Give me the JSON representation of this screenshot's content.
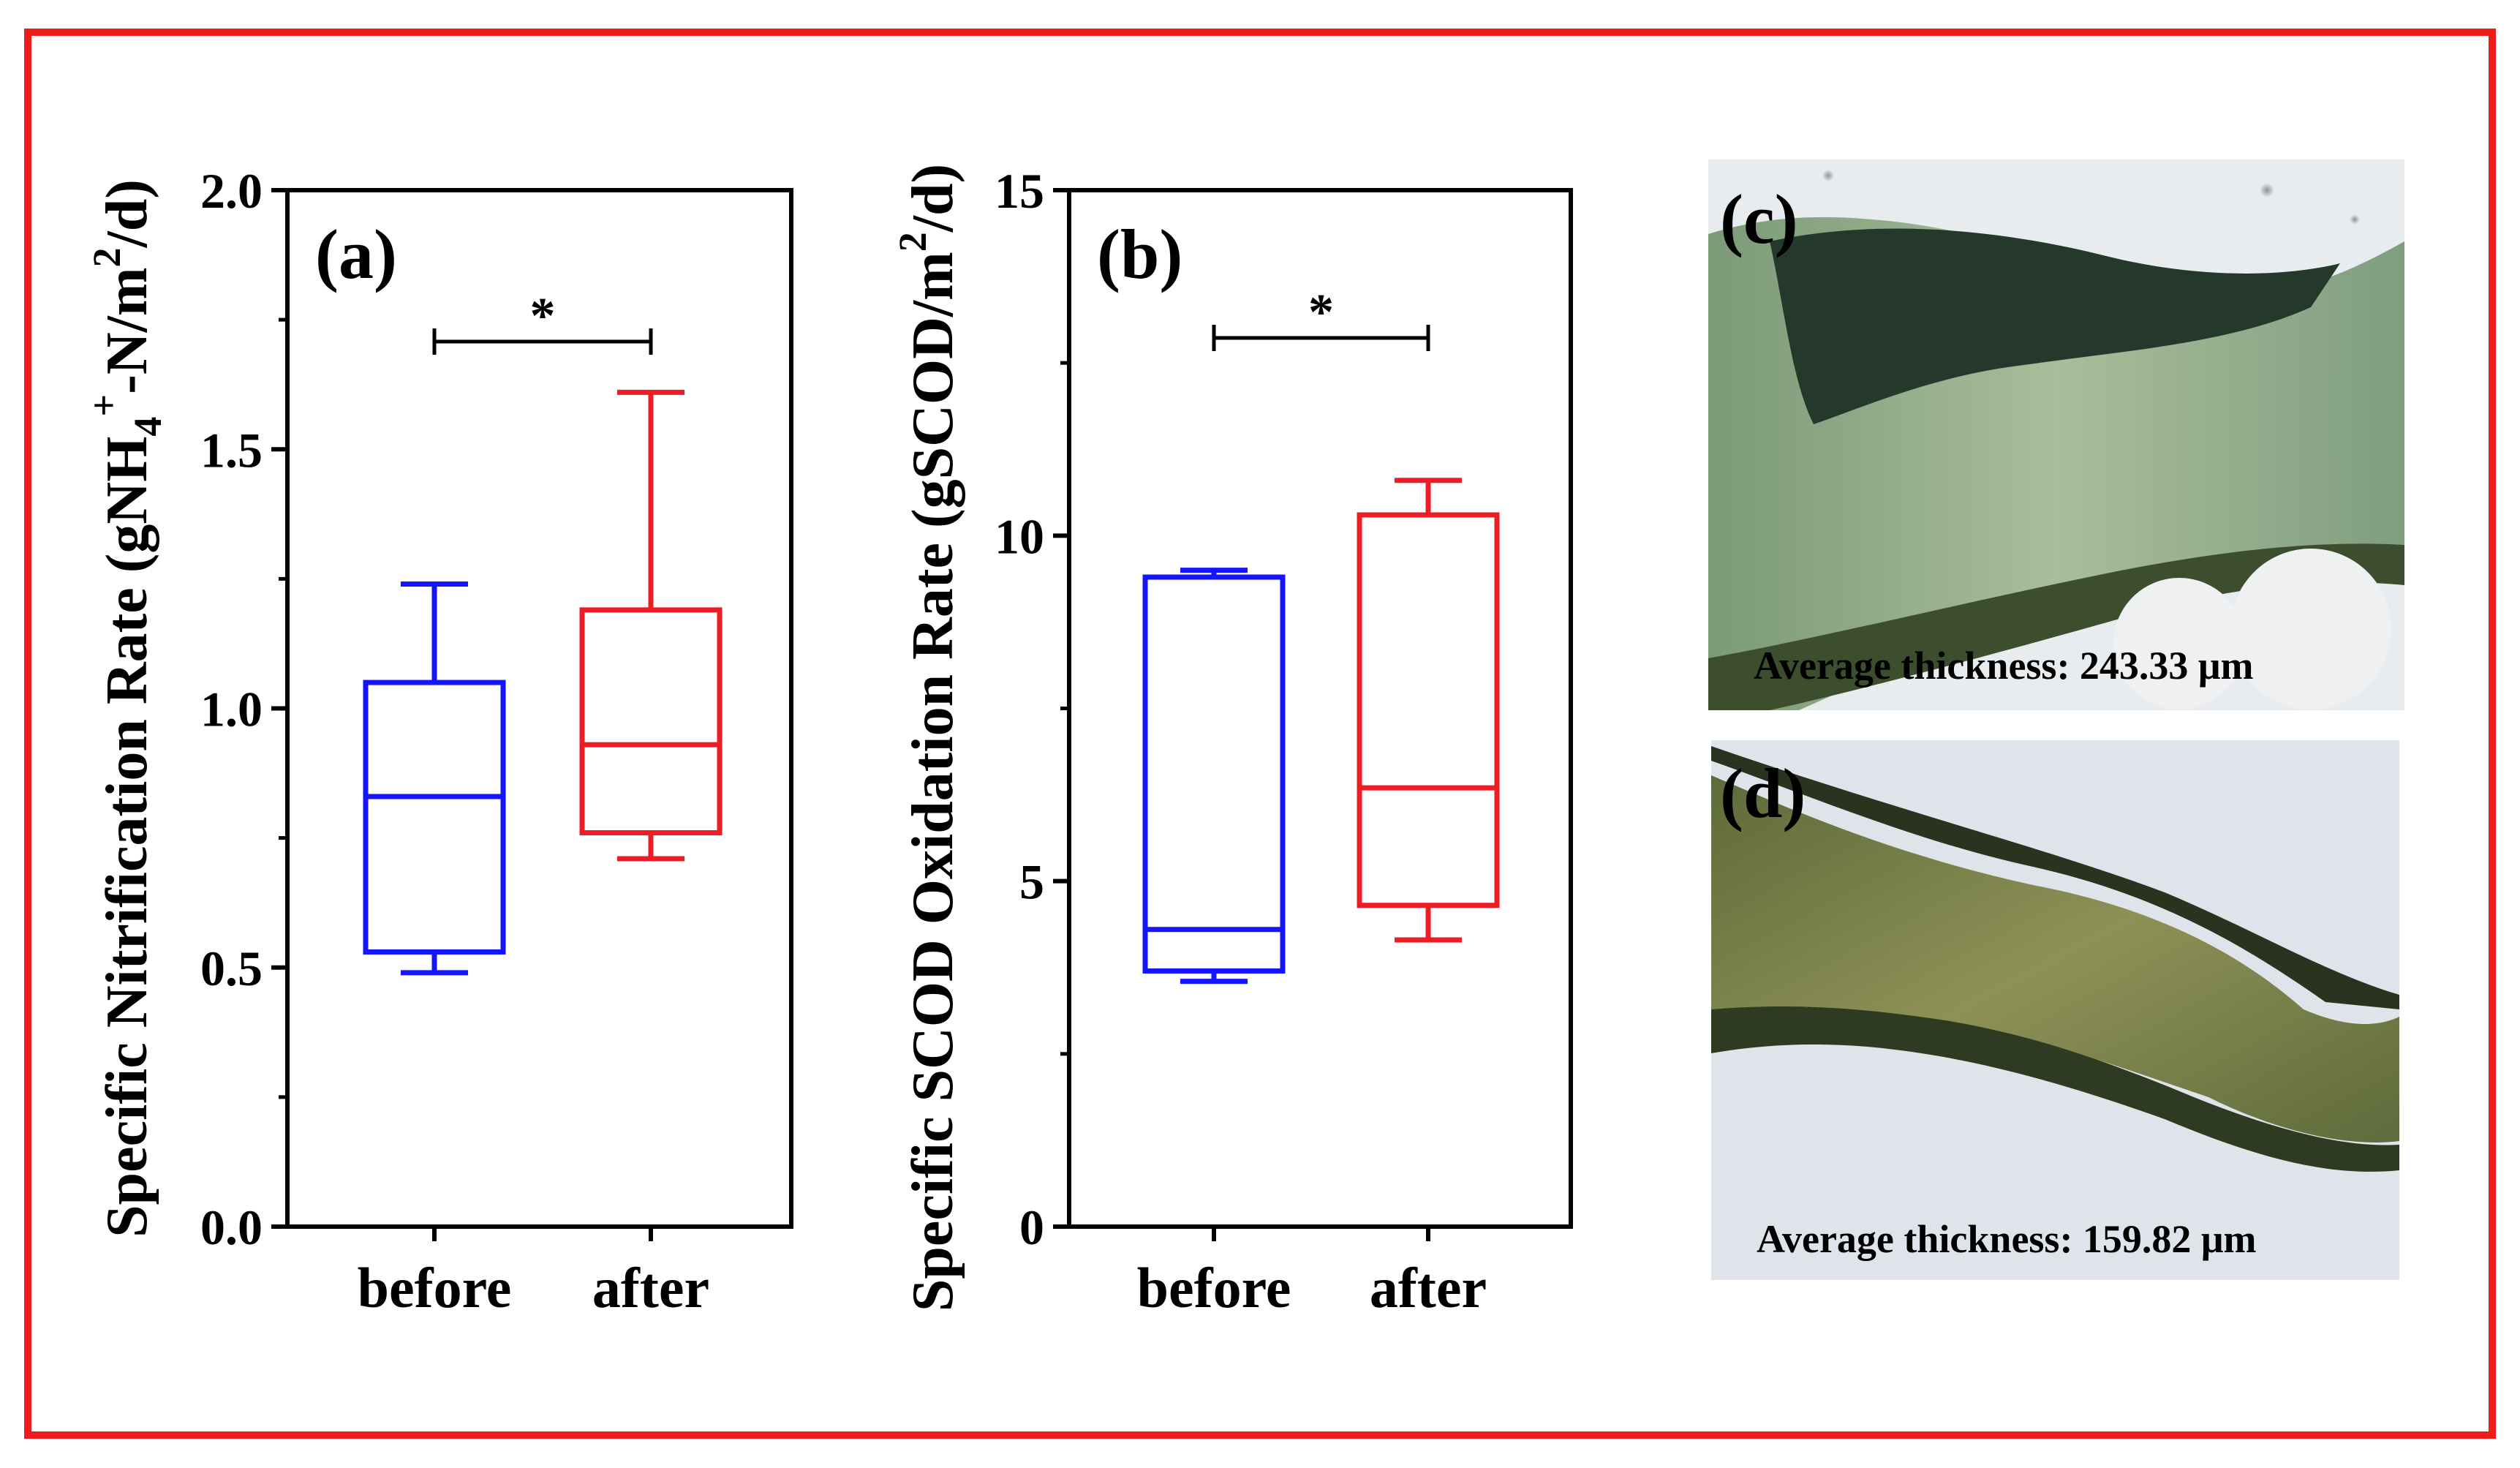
{
  "colors": {
    "border": "#ee1c1c",
    "before": "#1414ff",
    "after": "#ee1c24",
    "axis": "#000000"
  },
  "chart_data": [
    {
      "type": "box",
      "panel_label": "(a)",
      "ylabel_parts": {
        "main": "Specific Nitrification Rate (gNH",
        "sub": "4",
        "sup1": "+",
        "mid": "-N/m",
        "sup2": "2",
        "end": "/d)"
      },
      "ylim": [
        0,
        2.0
      ],
      "yticks": [
        "0.0",
        "0.5",
        "1.0",
        "1.5",
        "2.0"
      ],
      "categories": [
        "before",
        "after"
      ],
      "boxes": [
        {
          "name": "before",
          "min": 0.49,
          "q1": 0.53,
          "median": 0.83,
          "q3": 1.05,
          "max": 1.24
        },
        {
          "name": "after",
          "min": 0.71,
          "q1": 0.76,
          "median": 0.93,
          "q3": 1.19,
          "max": 1.61
        }
      ],
      "significance": "*",
      "grid": false
    },
    {
      "type": "box",
      "panel_label": "(b)",
      "ylabel_parts": {
        "main": "Specific SCOD Oxidation Rate (gSCOD/m",
        "sup": "2",
        "end": "/d)"
      },
      "ylim": [
        0,
        15
      ],
      "yticks": [
        "0",
        "5",
        "10",
        "15"
      ],
      "categories": [
        "before",
        "after"
      ],
      "boxes": [
        {
          "name": "before",
          "min": 3.55,
          "q1": 3.7,
          "median": 4.3,
          "q3": 9.4,
          "max": 9.5
        },
        {
          "name": "after",
          "min": 4.15,
          "q1": 4.65,
          "median": 6.35,
          "q3": 10.3,
          "max": 10.8
        }
      ],
      "significance": "*",
      "grid": false
    }
  ],
  "photos": [
    {
      "label": "(c)",
      "caption": "Average thickness: 243.33 μm"
    },
    {
      "label": "(d)",
      "caption": "Average thickness: 159.82 μm"
    }
  ]
}
